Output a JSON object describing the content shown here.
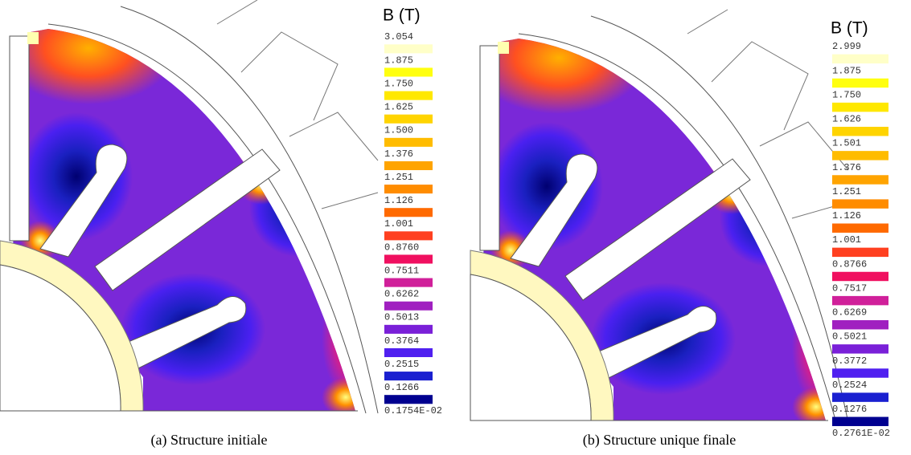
{
  "panels": [
    {
      "caption": "(a) Structure initiale",
      "legend": {
        "title": "B (T)",
        "labels": [
          "3.054",
          "1.875",
          "1.750",
          "1.625",
          "1.500",
          "1.376",
          "1.251",
          "1.126",
          "1.001",
          "0.8760",
          "0.7511",
          "0.6262",
          "0.5013",
          "0.3764",
          "0.2515",
          "0.1266",
          "0.1754E-02"
        ],
        "colors": [
          "#ffffc8",
          "#ffff10",
          "#ffe800",
          "#ffd400",
          "#ffbc00",
          "#ffa400",
          "#ff8c00",
          "#ff6a00",
          "#ff4020",
          "#f01060",
          "#d0209a",
          "#a020c0",
          "#7a20d8",
          "#5020f0",
          "#1a20d0",
          "#000090"
        ]
      }
    },
    {
      "caption": "(b) Structure unique finale",
      "legend": {
        "title": "B (T)",
        "labels": [
          "2.999",
          "1.875",
          "1.750",
          "1.626",
          "1.501",
          "1.376",
          "1.251",
          "1.126",
          "1.001",
          "0.8766",
          "0.7517",
          "0.6269",
          "0.5021",
          "0.3772",
          "0.2524",
          "0.1276",
          "0.2761E-02"
        ],
        "colors": [
          "#ffffc8",
          "#ffff10",
          "#ffe800",
          "#ffd400",
          "#ffbc00",
          "#ffa400",
          "#ff8c00",
          "#ff6a00",
          "#ff4020",
          "#f01060",
          "#d0209a",
          "#a020c0",
          "#7a20d8",
          "#5020f0",
          "#1a20d0",
          "#000090"
        ]
      }
    }
  ]
}
